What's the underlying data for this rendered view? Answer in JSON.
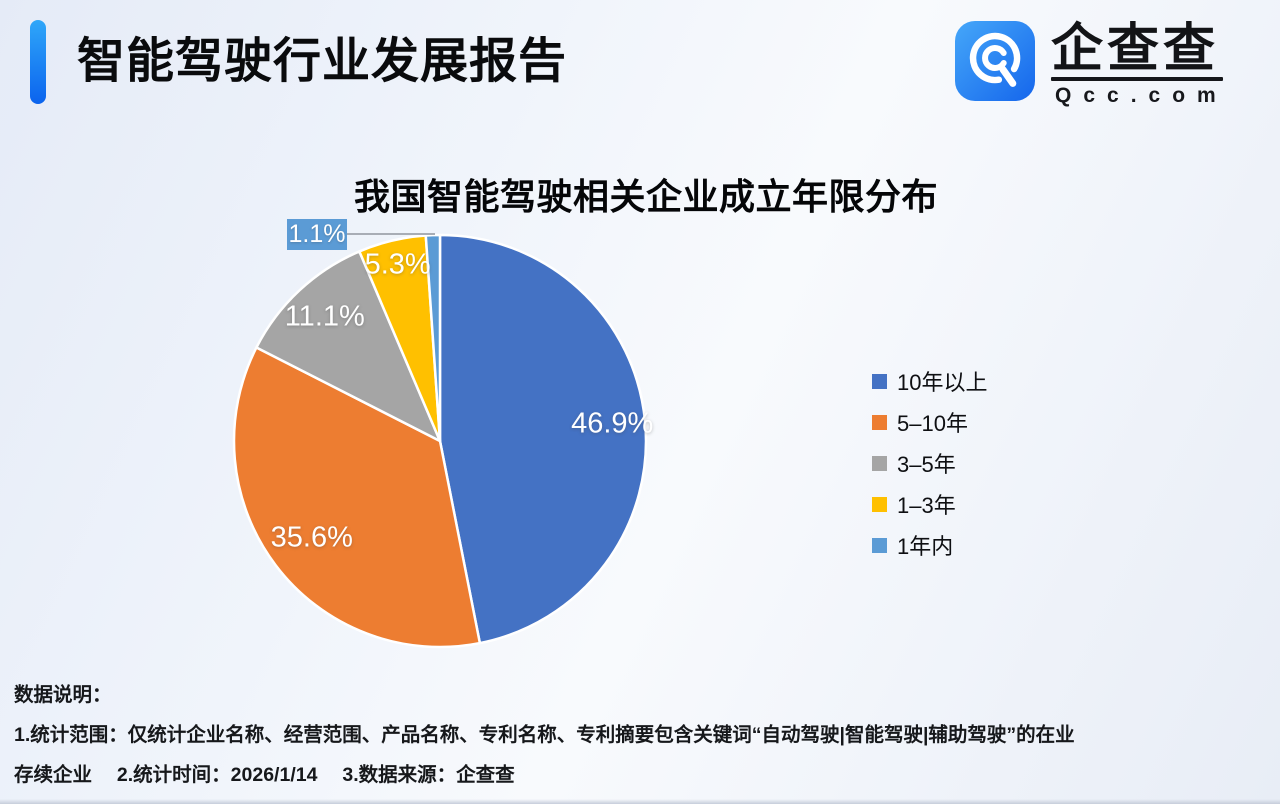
{
  "header": {
    "title": "智能驾驶行业发展报告",
    "logo": {
      "brand": "企查查",
      "domain": "Qcc.com"
    }
  },
  "chart_data": {
    "type": "pie",
    "title": "我国智能驾驶相关企业成立年限分布",
    "categories": [
      "10年以上",
      "5–10年",
      "3–5年",
      "1–3年",
      "1年内"
    ],
    "values": [
      46.9,
      35.6,
      11.1,
      5.3,
      1.1
    ],
    "labels": [
      "46.9%",
      "35.6%",
      "11.1%",
      "5.3%",
      "1.1%"
    ],
    "colors": [
      "#4472C4",
      "#ED7D31",
      "#A5A5A5",
      "#FFC000",
      "#5B9BD5"
    ],
    "unit": "percent",
    "start_angle_deg": 0,
    "direction": "clockwise",
    "legend_position": "right",
    "smallest_slice_callout": true
  },
  "footer": {
    "heading": "数据说明：",
    "line1": "1.统计范围：仅统计企业名称、经营范围、产品名称、专利名称、专利摘要包含关键词“自动驾驶|智能驾驶|辅助驾驶”的在业",
    "line2": "存续企业　 2.统计时间：2026/1/14　 3.数据来源：企查查"
  }
}
